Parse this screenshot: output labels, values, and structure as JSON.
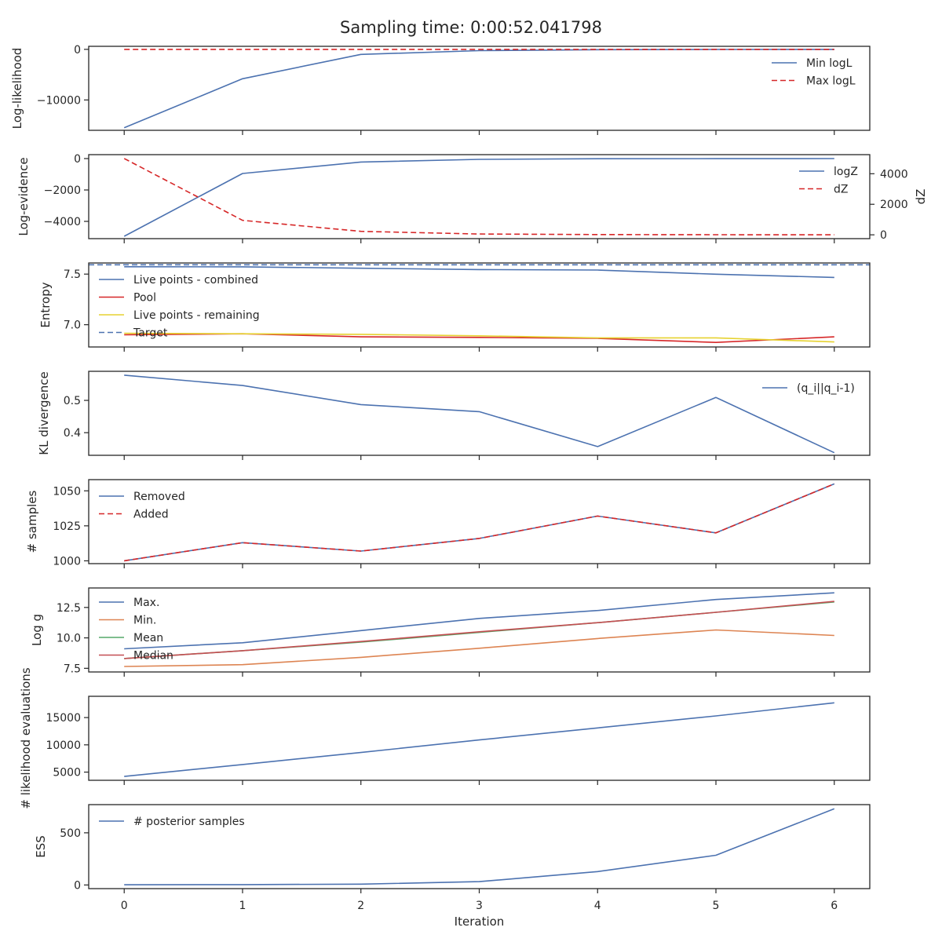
{
  "title": "Sampling time: 0:00:52.041798",
  "colors": {
    "blue": "#4c72b0",
    "red": "#d62728",
    "orange": "#dd8452",
    "green": "#55a868",
    "crimson": "#c44e52",
    "yellow": "#e6d231",
    "spine": "#262626"
  },
  "chart_data": [
    {
      "type": "line",
      "ylabel": "Log-likelihood",
      "xlim": [
        -0.3,
        6.3
      ],
      "ylim": [
        -16000,
        600
      ],
      "yticks": [
        0,
        -10000
      ],
      "ytick_labels": [
        "0",
        "−10000"
      ],
      "legend_position": "top-right",
      "series": [
        {
          "name": "Min logL",
          "color": "blue",
          "dash": false,
          "x": [
            0,
            1,
            2,
            3,
            4,
            5,
            6
          ],
          "y": [
            -15500,
            -5800,
            -1000,
            -250,
            -60,
            -20,
            -5
          ]
        },
        {
          "name": "Max logL",
          "color": "red",
          "dash": true,
          "x": [
            0,
            1,
            2,
            3,
            4,
            5,
            6
          ],
          "y": [
            0,
            0,
            0,
            0,
            0,
            0,
            0
          ]
        }
      ]
    },
    {
      "type": "line",
      "ylabel": "Log-evidence",
      "y2label": "dZ",
      "xlim": [
        -0.3,
        6.3
      ],
      "ylim": [
        -5100,
        250
      ],
      "yticks": [
        0,
        -2000,
        -4000
      ],
      "ytick_labels": [
        "0",
        "−2000",
        "−4000"
      ],
      "y2lim": [
        -250,
        5250
      ],
      "y2ticks": [
        0,
        2000,
        4000
      ],
      "y2tick_labels": [
        "0",
        "2000",
        "4000"
      ],
      "legend_position": "top-right",
      "series": [
        {
          "name": "logZ",
          "color": "blue",
          "dash": false,
          "axis": "left",
          "x": [
            0,
            1,
            2,
            3,
            4,
            5,
            6
          ],
          "y": [
            -4950,
            -950,
            -220,
            -50,
            -10,
            -5,
            -2
          ]
        },
        {
          "name": "dZ",
          "color": "red",
          "dash": true,
          "axis": "right",
          "x": [
            0,
            1,
            2,
            3,
            4,
            5,
            6
          ],
          "y": [
            5000,
            950,
            230,
            55,
            15,
            5,
            2
          ]
        }
      ]
    },
    {
      "type": "line",
      "ylabel": "Entropy",
      "xlim": [
        -0.3,
        6.3
      ],
      "ylim": [
        6.78,
        7.61
      ],
      "yticks": [
        7.5,
        7.0
      ],
      "ytick_labels": [
        "7.5",
        "7.0"
      ],
      "legend_position": "top-left",
      "series": [
        {
          "name": "Live points - combined",
          "color": "blue",
          "dash": false,
          "x": [
            0,
            1,
            2,
            3,
            4,
            5,
            6
          ],
          "y": [
            7.573,
            7.572,
            7.558,
            7.545,
            7.54,
            7.499,
            7.467
          ]
        },
        {
          "name": "Pool",
          "color": "red",
          "dash": false,
          "x": [
            0,
            1,
            2,
            3,
            4,
            5,
            6
          ],
          "y": [
            6.9,
            6.91,
            6.88,
            6.875,
            6.865,
            6.825,
            6.88
          ]
        },
        {
          "name": "Live points - remaining",
          "color": "yellow",
          "dash": false,
          "x": [
            0,
            1,
            2,
            3,
            4,
            5,
            6
          ],
          "y": [
            6.915,
            6.91,
            6.905,
            6.89,
            6.87,
            6.87,
            6.83
          ]
        },
        {
          "name": "Target",
          "color": "blue",
          "dash": true,
          "hline": 7.592
        }
      ]
    },
    {
      "type": "line",
      "ylabel": "KL divergence",
      "xlim": [
        -0.3,
        6.3
      ],
      "ylim": [
        0.33,
        0.59
      ],
      "yticks": [
        0.5,
        0.4
      ],
      "ytick_labels": [
        "0.5",
        "0.4"
      ],
      "legend_position": "top-right",
      "series": [
        {
          "name": "(q_i||q_i-1)",
          "color": "blue",
          "dash": false,
          "x": [
            0,
            1,
            2,
            3,
            4,
            5,
            6
          ],
          "y": [
            0.578,
            0.546,
            0.487,
            0.465,
            0.357,
            0.509,
            0.338
          ]
        }
      ]
    },
    {
      "type": "line",
      "ylabel": "# samples",
      "xlim": [
        -0.3,
        6.3
      ],
      "ylim": [
        998,
        1058
      ],
      "yticks": [
        1050,
        1025,
        1000
      ],
      "ytick_labels": [
        "1050",
        "1025",
        "1000"
      ],
      "legend_position": "top-left",
      "series": [
        {
          "name": "Removed",
          "color": "blue",
          "dash": false,
          "x": [
            0,
            1,
            2,
            3,
            4,
            5,
            6
          ],
          "y": [
            1000,
            1013,
            1007,
            1016,
            1032,
            1020,
            1055
          ]
        },
        {
          "name": "Added",
          "color": "red",
          "dash": true,
          "x": [
            0,
            1,
            2,
            3,
            4,
            5,
            6
          ],
          "y": [
            1000,
            1013,
            1007,
            1016,
            1032,
            1020,
            1055
          ]
        }
      ]
    },
    {
      "type": "line",
      "ylabel": "Log g",
      "xlim": [
        -0.3,
        6.3
      ],
      "ylim": [
        7.2,
        14.1
      ],
      "yticks": [
        12.5,
        10.0,
        7.5
      ],
      "ytick_labels": [
        "12.5",
        "10.0",
        "7.5"
      ],
      "legend_position": "top-left",
      "series": [
        {
          "name": "Max.",
          "color": "blue",
          "dash": false,
          "x": [
            0,
            1,
            2,
            3,
            4,
            5,
            6
          ],
          "y": [
            9.1,
            9.6,
            10.6,
            11.6,
            12.25,
            13.15,
            13.7
          ]
        },
        {
          "name": "Min.",
          "color": "orange",
          "dash": false,
          "x": [
            0,
            1,
            2,
            3,
            4,
            5,
            6
          ],
          "y": [
            7.65,
            7.8,
            8.4,
            9.15,
            9.95,
            10.65,
            10.2
          ]
        },
        {
          "name": "Mean",
          "color": "green",
          "dash": false,
          "x": [
            0,
            1,
            2,
            3,
            4,
            5,
            6
          ],
          "y": [
            8.3,
            8.95,
            9.65,
            10.45,
            11.25,
            12.1,
            12.95
          ]
        },
        {
          "name": "Median",
          "color": "crimson",
          "dash": false,
          "x": [
            0,
            1,
            2,
            3,
            4,
            5,
            6
          ],
          "y": [
            8.3,
            8.95,
            9.7,
            10.5,
            11.25,
            12.1,
            13.0
          ]
        }
      ]
    },
    {
      "type": "line",
      "ylabel": "# likelihood evaluations",
      "xlim": [
        -0.3,
        6.3
      ],
      "ylim": [
        3500,
        18900
      ],
      "yticks": [
        15000,
        10000,
        5000
      ],
      "ytick_labels": [
        "15000",
        "10000",
        "5000"
      ],
      "series": [
        {
          "name": "",
          "color": "blue",
          "dash": false,
          "x": [
            0,
            1,
            2,
            3,
            4,
            5,
            6
          ],
          "y": [
            4200,
            6400,
            8600,
            10900,
            13100,
            15300,
            17700
          ]
        }
      ]
    },
    {
      "type": "line",
      "ylabel": "ESS",
      "xlabel": "Iteration",
      "xlim": [
        -0.3,
        6.3
      ],
      "xticks": [
        0,
        1,
        2,
        3,
        4,
        5,
        6
      ],
      "xtick_labels": [
        "0",
        "1",
        "2",
        "3",
        "4",
        "5",
        "6"
      ],
      "ylim": [
        -35,
        770
      ],
      "yticks": [
        500,
        0
      ],
      "ytick_labels": [
        "500",
        "0"
      ],
      "legend_position": "top-left",
      "series": [
        {
          "name": "# posterior samples",
          "color": "blue",
          "dash": false,
          "x": [
            0,
            1,
            2,
            3,
            4,
            5,
            6
          ],
          "y": [
            2,
            3,
            8,
            32,
            128,
            285,
            730
          ]
        }
      ]
    }
  ]
}
